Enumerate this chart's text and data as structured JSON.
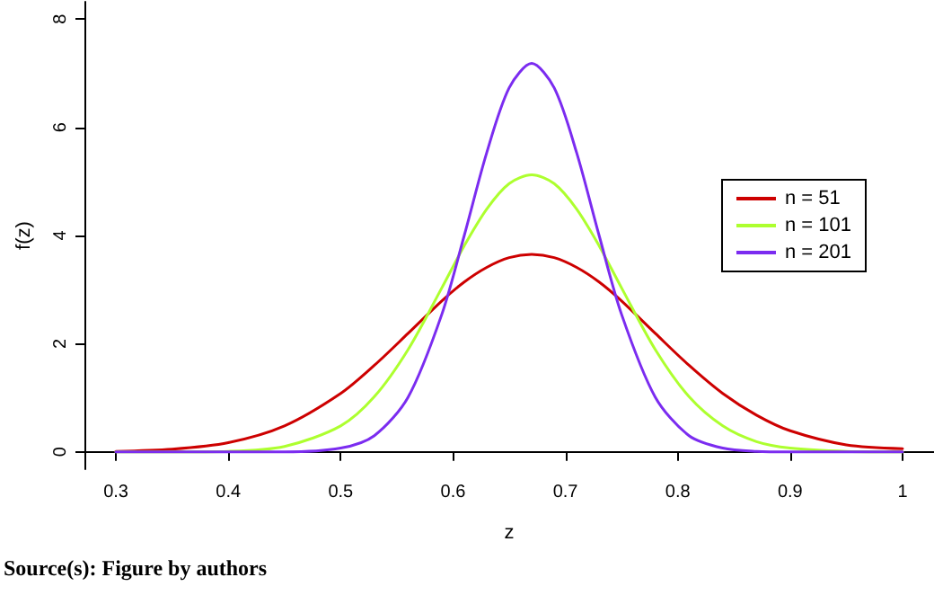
{
  "chart_data": {
    "type": "line",
    "xlabel": "z",
    "ylabel": "f(z)",
    "x": [
      0.3,
      0.35,
      0.4,
      0.45,
      0.5,
      0.53,
      0.56,
      0.59,
      0.61,
      0.63,
      0.65,
      0.67,
      0.69,
      0.71,
      0.73,
      0.75,
      0.78,
      0.81,
      0.84,
      0.87,
      0.9,
      0.95,
      1.0
    ],
    "series": [
      {
        "name": "n = 51",
        "color": "#cd0000",
        "values": [
          0.01,
          0.05,
          0.17,
          0.48,
          1.08,
          1.6,
          2.19,
          2.79,
          3.14,
          3.41,
          3.59,
          3.65,
          3.59,
          3.41,
          3.14,
          2.79,
          2.19,
          1.6,
          1.08,
          0.68,
          0.39,
          0.13,
          0.06
        ]
      },
      {
        "name": "n = 101",
        "color": "#adff2f",
        "values": [
          0.0,
          0.0,
          0.01,
          0.1,
          0.48,
          1.02,
          1.89,
          3.03,
          3.81,
          4.49,
          4.96,
          5.12,
          4.96,
          4.49,
          3.81,
          3.03,
          1.89,
          1.02,
          0.48,
          0.19,
          0.07,
          0.01,
          0.0
        ]
      },
      {
        "name": "n = 201",
        "color": "#7b2cf0",
        "values": [
          0.0,
          0.0,
          0.0,
          0.0,
          0.07,
          0.3,
          1.01,
          2.54,
          4.0,
          5.53,
          6.73,
          7.18,
          6.73,
          5.53,
          4.0,
          2.54,
          1.01,
          0.3,
          0.07,
          0.01,
          0.0,
          0.0,
          0.0
        ]
      }
    ],
    "xlim": [
      0.272,
      1.028
    ],
    "xticks": [
      0.3,
      0.4,
      0.5,
      0.6,
      0.7,
      0.8,
      0.9,
      1.0
    ],
    "ylim": [
      -0.32,
      8.32
    ],
    "yticks": [
      0,
      2,
      4,
      6,
      8
    ],
    "grid": false,
    "legend": "right",
    "marker": "none",
    "line_style": "solid",
    "annotations": [
      "Source(s): Figure by authors"
    ]
  }
}
